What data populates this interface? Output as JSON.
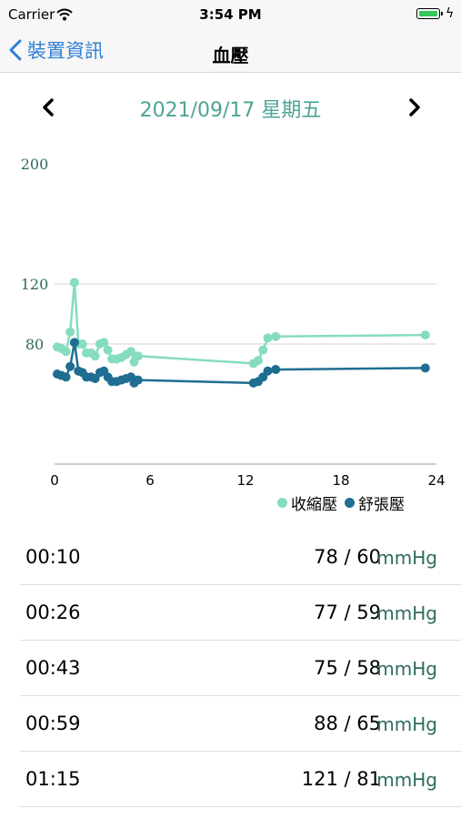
{
  "status_bar": {
    "carrier": "Carrier",
    "time": "3:54 PM"
  },
  "nav": {
    "back_label": "裝置資訊",
    "title": "血壓"
  },
  "date": {
    "label": "2021/09/17 星期五"
  },
  "colors": {
    "accent": "#4ea394",
    "systolic": "#86dcc0",
    "diastolic": "#1f6e91",
    "link": "#2f7fd6"
  },
  "chart_data": {
    "type": "line",
    "y_tick_labels": [
      "200",
      "120",
      "80"
    ],
    "x_tick_labels": [
      "0",
      "6",
      "12",
      "18",
      "24"
    ],
    "xlim": [
      0,
      24
    ],
    "ylim": [
      0,
      200
    ],
    "legend_position": "bottom-right",
    "series": [
      {
        "name": "收縮壓",
        "points": [
          [
            0.17,
            78
          ],
          [
            0.43,
            77
          ],
          [
            0.72,
            75
          ],
          [
            0.98,
            88
          ],
          [
            1.25,
            121
          ],
          [
            1.5,
            80
          ],
          [
            1.75,
            80
          ],
          [
            2.0,
            74
          ],
          [
            2.3,
            74
          ],
          [
            2.55,
            72
          ],
          [
            2.85,
            80
          ],
          [
            3.1,
            81
          ],
          [
            3.35,
            76
          ],
          [
            3.6,
            70
          ],
          [
            3.9,
            70
          ],
          [
            4.2,
            71
          ],
          [
            4.5,
            73
          ],
          [
            4.8,
            75
          ],
          [
            5.0,
            68
          ],
          [
            5.25,
            72
          ],
          [
            12.5,
            67
          ],
          [
            12.8,
            69
          ],
          [
            13.1,
            76
          ],
          [
            13.4,
            84
          ],
          [
            13.9,
            85
          ],
          [
            23.3,
            86
          ]
        ]
      },
      {
        "name": "舒張壓",
        "points": [
          [
            0.17,
            60
          ],
          [
            0.43,
            59
          ],
          [
            0.72,
            58
          ],
          [
            0.98,
            65
          ],
          [
            1.25,
            81
          ],
          [
            1.5,
            62
          ],
          [
            1.75,
            61
          ],
          [
            2.0,
            58
          ],
          [
            2.3,
            58
          ],
          [
            2.55,
            57
          ],
          [
            2.85,
            61
          ],
          [
            3.1,
            62
          ],
          [
            3.35,
            58
          ],
          [
            3.6,
            55
          ],
          [
            3.9,
            55
          ],
          [
            4.2,
            56
          ],
          [
            4.5,
            57
          ],
          [
            4.8,
            58
          ],
          [
            5.0,
            54
          ],
          [
            5.25,
            56
          ],
          [
            12.5,
            54
          ],
          [
            12.8,
            55
          ],
          [
            13.1,
            58
          ],
          [
            13.4,
            62
          ],
          [
            13.9,
            63
          ],
          [
            23.3,
            64
          ]
        ]
      }
    ]
  },
  "readings": [
    {
      "time": "00:10",
      "value": "78 / 60",
      "unit": "mmHg"
    },
    {
      "time": "00:26",
      "value": "77 / 59",
      "unit": "mmHg"
    },
    {
      "time": "00:43",
      "value": "75 / 58",
      "unit": "mmHg"
    },
    {
      "time": "00:59",
      "value": "88 / 65",
      "unit": "mmHg"
    },
    {
      "time": "01:15",
      "value": "121 / 81",
      "unit": "mmHg"
    }
  ]
}
